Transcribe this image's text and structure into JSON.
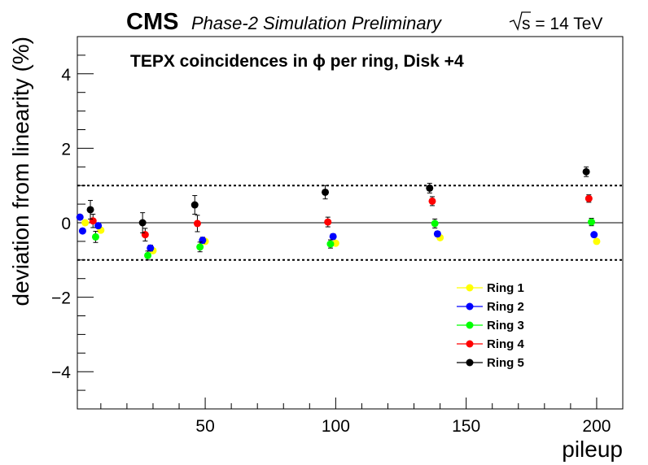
{
  "header": {
    "experiment": "CMS",
    "status": "Phase-2 Simulation Preliminary",
    "energy_suffix": "s = 14 TeV"
  },
  "chart_data": {
    "type": "scatter",
    "title": "TEPX coincidences in ϕ per ring, Disk +4",
    "xlabel": "pileup",
    "ylabel": "deviation from linearity (%)",
    "xlim": [
      1,
      210
    ],
    "ylim": [
      -5,
      5
    ],
    "x_ticks": [
      50,
      100,
      150,
      200
    ],
    "y_ticks": [
      -4,
      -2,
      0,
      2,
      4
    ],
    "reference_lines": [
      {
        "y": 0,
        "style": "solid"
      },
      {
        "y": 1,
        "style": "dotted"
      },
      {
        "y": -1,
        "style": "dotted"
      }
    ],
    "legend_position": "bottom-right",
    "series": [
      {
        "name": "Ring 1",
        "color": "#ffff00",
        "points": [
          [
            2,
            0.15,
            0.06
          ],
          [
            4,
            0.0,
            0.06
          ],
          [
            10,
            -0.2,
            0.06
          ],
          [
            30,
            -0.75,
            0.06
          ],
          [
            50,
            -0.5,
            0.06
          ],
          [
            100,
            -0.55,
            0.06
          ],
          [
            140,
            -0.4,
            0.06
          ],
          [
            200,
            -0.5,
            0.06
          ]
        ]
      },
      {
        "name": "Ring 2",
        "color": "#0000ff",
        "points": [
          [
            2,
            0.15,
            0.06
          ],
          [
            3,
            -0.22,
            0.06
          ],
          [
            9,
            -0.08,
            0.06
          ],
          [
            29,
            -0.68,
            0.08
          ],
          [
            49,
            -0.47,
            0.08
          ],
          [
            99,
            -0.37,
            0.07
          ],
          [
            139,
            -0.3,
            0.07
          ],
          [
            199,
            -0.32,
            0.06
          ]
        ]
      },
      {
        "name": "Ring 3",
        "color": "#00ff00",
        "points": [
          [
            8,
            -0.38,
            0.15
          ],
          [
            28,
            -0.88,
            0.12
          ],
          [
            48,
            -0.65,
            0.13
          ],
          [
            98,
            -0.57,
            0.11
          ],
          [
            138,
            -0.02,
            0.12
          ],
          [
            198,
            0.02,
            0.1
          ]
        ]
      },
      {
        "name": "Ring 4",
        "color": "#ff0000",
        "points": [
          [
            7,
            0.05,
            0.18
          ],
          [
            27,
            -0.32,
            0.17
          ],
          [
            47,
            -0.02,
            0.22
          ],
          [
            97,
            0.02,
            0.13
          ],
          [
            137,
            0.58,
            0.12
          ],
          [
            197,
            0.65,
            0.1
          ]
        ]
      },
      {
        "name": "Ring 5",
        "color": "#000000",
        "points": [
          [
            6,
            0.35,
            0.25
          ],
          [
            26,
            0.0,
            0.27
          ],
          [
            46,
            0.48,
            0.25
          ],
          [
            96,
            0.82,
            0.18
          ],
          [
            136,
            0.93,
            0.13
          ],
          [
            196,
            1.37,
            0.13
          ]
        ]
      }
    ]
  }
}
